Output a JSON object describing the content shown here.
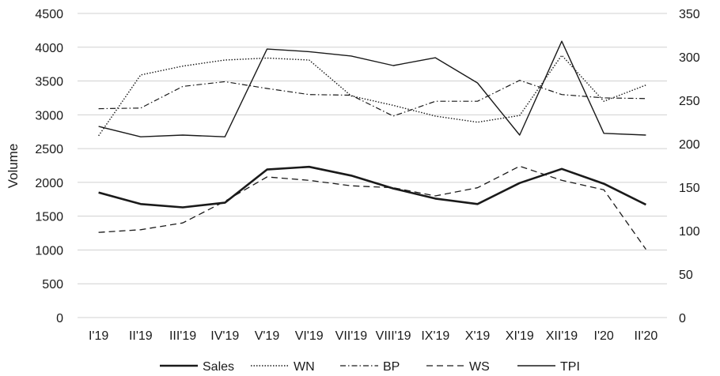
{
  "chart_data": {
    "type": "line",
    "title": "",
    "xlabel": "",
    "ylabel": "Volume",
    "y2label": "",
    "ylim": [
      0,
      4500
    ],
    "y2lim": [
      0,
      350
    ],
    "yticks": [
      "0",
      "500",
      "1000",
      "1500",
      "2000",
      "2500",
      "3000",
      "3500",
      "4000",
      "4500"
    ],
    "y2ticks": [
      "0",
      "50",
      "100",
      "150",
      "200",
      "250",
      "300",
      "350"
    ],
    "categories": [
      "I'19",
      "II'19",
      "III'19",
      "IV'19",
      "V'19",
      "VI'19",
      "VII'19",
      "VIII'19",
      "IX'19",
      "X'19",
      "XI'19",
      "XII'19",
      "I'20",
      "II'20"
    ],
    "grid": true,
    "legend_position": "bottom",
    "series": [
      {
        "name": "Sales",
        "axis": "left",
        "style": "solid-thick",
        "color": "#1a1a1a",
        "values": [
          1850,
          1680,
          1630,
          1700,
          2190,
          2230,
          2100,
          1910,
          1760,
          1680,
          1990,
          2200,
          1980,
          1670
        ]
      },
      {
        "name": "WN",
        "axis": "left",
        "style": "dotted",
        "color": "#1a1a1a",
        "values": [
          2690,
          3590,
          3720,
          3810,
          3840,
          3810,
          3280,
          3140,
          2980,
          2890,
          2990,
          3880,
          3200,
          3440
        ]
      },
      {
        "name": "BP",
        "axis": "left",
        "style": "dash-dot",
        "color": "#1a1a1a",
        "values": [
          3090,
          3100,
          3420,
          3490,
          3390,
          3300,
          3290,
          2980,
          3200,
          3200,
          3510,
          3300,
          3250,
          3240
        ]
      },
      {
        "name": "WS",
        "axis": "left",
        "style": "dashed",
        "color": "#1a1a1a",
        "values": [
          1260,
          1300,
          1400,
          1720,
          2080,
          2030,
          1950,
          1920,
          1800,
          1920,
          2240,
          2030,
          1890,
          1010
        ]
      },
      {
        "name": "TPI",
        "axis": "right",
        "style": "solid-thin",
        "color": "#1a1a1a",
        "values": [
          220,
          208,
          210,
          208,
          309,
          306,
          301,
          290,
          299,
          270,
          210,
          318,
          212,
          210
        ]
      }
    ]
  }
}
